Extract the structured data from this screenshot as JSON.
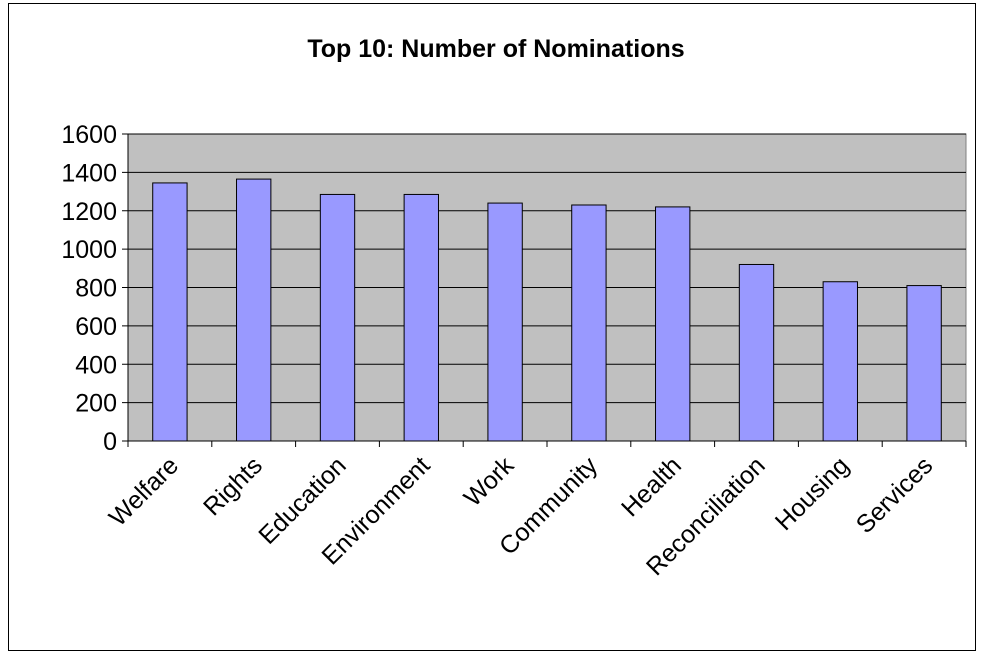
{
  "colors": {
    "plot_background": "#c0c0c0",
    "bar_fill": "#9999ff",
    "bar_stroke": "#000000",
    "gridline": "#000000"
  },
  "chart_data": {
    "type": "bar",
    "title": "Top 10: Number of Nominations",
    "xlabel": "",
    "ylabel": "",
    "categories": [
      "Welfare",
      "Rights",
      "Education",
      "Environment",
      "Work",
      "Community",
      "Health",
      "Reconciliation",
      "Housing",
      "Services"
    ],
    "values": [
      1345,
      1365,
      1285,
      1285,
      1240,
      1230,
      1220,
      920,
      830,
      810
    ],
    "ylim": [
      0,
      1600
    ],
    "yticks": [
      "0",
      "200",
      "400",
      "600",
      "800",
      "1000",
      "1200",
      "1400",
      "1600"
    ],
    "grid": true,
    "legend": "none"
  }
}
